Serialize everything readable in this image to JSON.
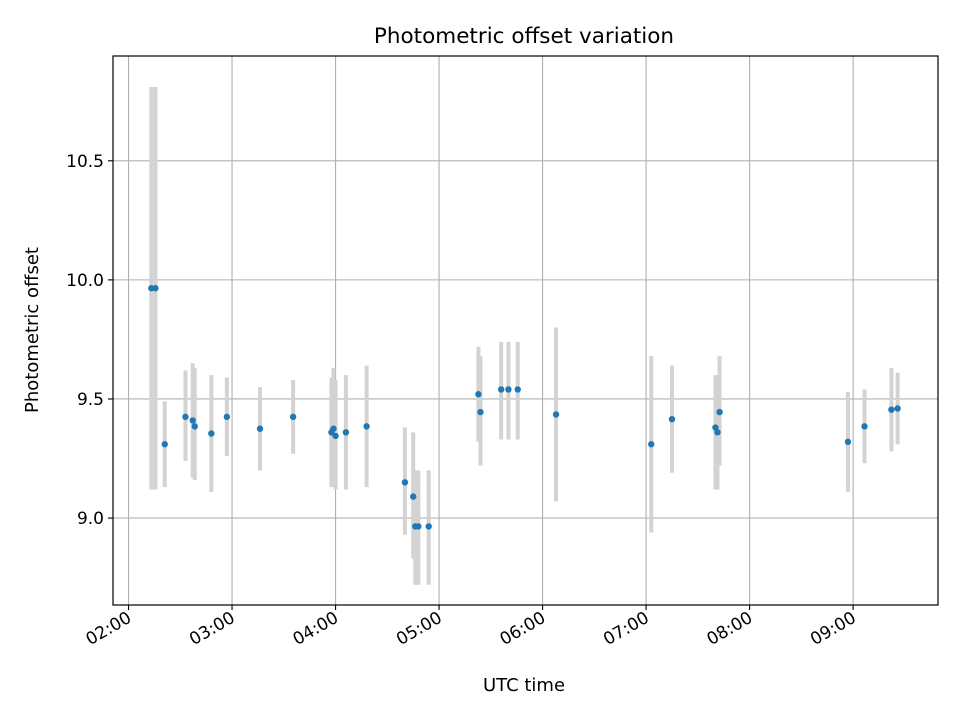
{
  "chart_data": {
    "type": "scatter",
    "title": "Photometric offset variation",
    "xlabel": "UTC time",
    "ylabel": "Photometric offset",
    "x_unit": "hours",
    "xlim": [
      1.85,
      9.82
    ],
    "ylim": [
      8.635,
      10.94
    ],
    "grid": true,
    "x_ticks": [
      {
        "value": 2,
        "label": "02:00"
      },
      {
        "value": 3,
        "label": "03:00"
      },
      {
        "value": 4,
        "label": "04:00"
      },
      {
        "value": 5,
        "label": "05:00"
      },
      {
        "value": 6,
        "label": "06:00"
      },
      {
        "value": 7,
        "label": "07:00"
      },
      {
        "value": 8,
        "label": "08:00"
      },
      {
        "value": 9,
        "label": "09:00"
      }
    ],
    "y_ticks": [
      {
        "value": 9.0,
        "label": "9.0"
      },
      {
        "value": 9.5,
        "label": "9.5"
      },
      {
        "value": 10.0,
        "label": "10.0"
      },
      {
        "value": 10.5,
        "label": "10.5"
      }
    ],
    "colors": {
      "point": "#1f77b4",
      "errorbar": "#d3d3d3",
      "grid": "#b0b0b0"
    },
    "points": [
      {
        "x": 2.22,
        "y": 9.965,
        "lo": 9.12,
        "hi": 10.81
      },
      {
        "x": 2.26,
        "y": 9.965,
        "lo": 9.12,
        "hi": 10.81
      },
      {
        "x": 2.35,
        "y": 9.31,
        "lo": 9.13,
        "hi": 9.49
      },
      {
        "x": 2.55,
        "y": 9.425,
        "lo": 9.24,
        "hi": 9.62
      },
      {
        "x": 2.62,
        "y": 9.41,
        "lo": 9.17,
        "hi": 9.65
      },
      {
        "x": 2.64,
        "y": 9.385,
        "lo": 9.16,
        "hi": 9.63
      },
      {
        "x": 2.8,
        "y": 9.355,
        "lo": 9.11,
        "hi": 9.6
      },
      {
        "x": 2.95,
        "y": 9.425,
        "lo": 9.26,
        "hi": 9.59
      },
      {
        "x": 3.27,
        "y": 9.375,
        "lo": 9.2,
        "hi": 9.55
      },
      {
        "x": 3.59,
        "y": 9.425,
        "lo": 9.27,
        "hi": 9.58
      },
      {
        "x": 3.96,
        "y": 9.36,
        "lo": 9.13,
        "hi": 9.59
      },
      {
        "x": 3.98,
        "y": 9.375,
        "lo": 9.13,
        "hi": 9.63
      },
      {
        "x": 4.0,
        "y": 9.345,
        "lo": 9.12,
        "hi": 9.58
      },
      {
        "x": 4.1,
        "y": 9.36,
        "lo": 9.12,
        "hi": 9.6
      },
      {
        "x": 4.3,
        "y": 9.385,
        "lo": 9.13,
        "hi": 9.64
      },
      {
        "x": 4.67,
        "y": 9.15,
        "lo": 8.93,
        "hi": 9.38
      },
      {
        "x": 4.75,
        "y": 9.09,
        "lo": 8.83,
        "hi": 9.36
      },
      {
        "x": 4.77,
        "y": 8.965,
        "lo": 8.72,
        "hi": 9.2
      },
      {
        "x": 4.8,
        "y": 8.965,
        "lo": 8.72,
        "hi": 9.2
      },
      {
        "x": 4.9,
        "y": 8.965,
        "lo": 8.72,
        "hi": 9.2
      },
      {
        "x": 5.38,
        "y": 9.52,
        "lo": 9.32,
        "hi": 9.72
      },
      {
        "x": 5.4,
        "y": 9.445,
        "lo": 9.22,
        "hi": 9.68
      },
      {
        "x": 5.6,
        "y": 9.54,
        "lo": 9.33,
        "hi": 9.74
      },
      {
        "x": 5.67,
        "y": 9.54,
        "lo": 9.33,
        "hi": 9.74
      },
      {
        "x": 5.76,
        "y": 9.54,
        "lo": 9.33,
        "hi": 9.74
      },
      {
        "x": 6.13,
        "y": 9.435,
        "lo": 9.07,
        "hi": 9.8
      },
      {
        "x": 7.05,
        "y": 9.31,
        "lo": 8.94,
        "hi": 9.68
      },
      {
        "x": 7.25,
        "y": 9.415,
        "lo": 9.19,
        "hi": 9.64
      },
      {
        "x": 7.67,
        "y": 9.38,
        "lo": 9.12,
        "hi": 9.6
      },
      {
        "x": 7.69,
        "y": 9.36,
        "lo": 9.12,
        "hi": 9.6
      },
      {
        "x": 7.71,
        "y": 9.445,
        "lo": 9.22,
        "hi": 9.68
      },
      {
        "x": 8.95,
        "y": 9.32,
        "lo": 9.11,
        "hi": 9.53
      },
      {
        "x": 9.11,
        "y": 9.385,
        "lo": 9.23,
        "hi": 9.54
      },
      {
        "x": 9.37,
        "y": 9.455,
        "lo": 9.28,
        "hi": 9.63
      },
      {
        "x": 9.43,
        "y": 9.46,
        "lo": 9.31,
        "hi": 9.61
      }
    ]
  }
}
